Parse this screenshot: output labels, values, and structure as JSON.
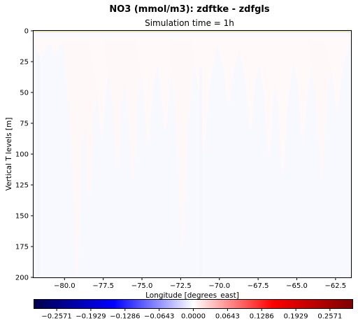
{
  "chart_data": {
    "type": "heatmap",
    "title": "NO3 (mmol/m3): zdftke - zdfgls",
    "subtitle": "Simulation time = 1h",
    "xlabel": "Longitude [degrees_east]",
    "ylabel": "Vertical T levels [m]",
    "xlim": [
      -82.0,
      -61.5
    ],
    "ylim": [
      200,
      0
    ],
    "x_ticks": [
      -80.0,
      -77.5,
      -75.0,
      -72.5,
      -70.0,
      -67.5,
      -65.0,
      -62.5
    ],
    "x_tick_labels": [
      "−80.0",
      "−77.5",
      "−75.0",
      "−72.5",
      "−70.0",
      "−67.5",
      "−65.0",
      "−62.5"
    ],
    "y_ticks": [
      0,
      25,
      50,
      75,
      100,
      125,
      150,
      175,
      200
    ],
    "y_tick_labels": [
      "0",
      "25",
      "50",
      "75",
      "100",
      "125",
      "150",
      "175",
      "200"
    ],
    "colorbar": {
      "colormap": "seismic",
      "vmin": -0.3,
      "vmax": 0.3,
      "colors": [
        "#00004c",
        "#0000ff",
        "#ffffff",
        "#ff0000",
        "#7f0000"
      ],
      "ticks": [
        -0.2571,
        -0.1929,
        -0.1286,
        -0.0643,
        0.0,
        0.0643,
        0.1286,
        0.1929,
        0.2571
      ],
      "tick_labels": [
        "−0.2571",
        "−0.1929",
        "−0.1286",
        "−0.0643",
        "0.0000",
        "0.0643",
        "0.1286",
        "0.1929",
        "0.2571"
      ]
    },
    "field": {
      "background_value": -0.004,
      "surface_band": {
        "depth_range": [
          4,
          6
        ],
        "value": 0.003
      },
      "plumes": [
        {
          "lon": -81.5,
          "max_depth": 22,
          "value": 0.004
        },
        {
          "lon": -80.6,
          "max_depth": 18,
          "value": 0.004
        },
        {
          "lon": -79.2,
          "max_depth": 200,
          "value": 0.005
        },
        {
          "lon": -78.4,
          "max_depth": 135,
          "value": 0.005
        },
        {
          "lon": -77.6,
          "max_depth": 85,
          "value": 0.004
        },
        {
          "lon": -76.6,
          "max_depth": 112,
          "value": 0.005
        },
        {
          "lon": -75.6,
          "max_depth": 120,
          "value": 0.005
        },
        {
          "lon": -74.6,
          "max_depth": 90,
          "value": 0.004
        },
        {
          "lon": -73.5,
          "max_depth": 80,
          "value": 0.004
        },
        {
          "lon": -72.4,
          "max_depth": 175,
          "value": 0.005
        },
        {
          "lon": -71.0,
          "max_depth": 98,
          "value": 0.004
        },
        {
          "lon": -69.4,
          "max_depth": 60,
          "value": 0.004
        },
        {
          "lon": -68.0,
          "max_depth": 80,
          "value": 0.004
        },
        {
          "lon": -66.8,
          "max_depth": 100,
          "value": 0.004
        },
        {
          "lon": -65.9,
          "max_depth": 115,
          "value": 0.004
        },
        {
          "lon": -64.6,
          "max_depth": 90,
          "value": 0.004
        },
        {
          "lon": -63.4,
          "max_depth": 120,
          "value": 0.005
        },
        {
          "lon": -62.4,
          "max_depth": 65,
          "value": 0.004
        }
      ],
      "blue_streaks": [
        {
          "lon": -81.7,
          "depth_range": [
            20,
            200
          ],
          "value": -0.006
        },
        {
          "lon": -71.2,
          "depth_range": [
            30,
            200
          ],
          "value": -0.005
        }
      ]
    }
  }
}
